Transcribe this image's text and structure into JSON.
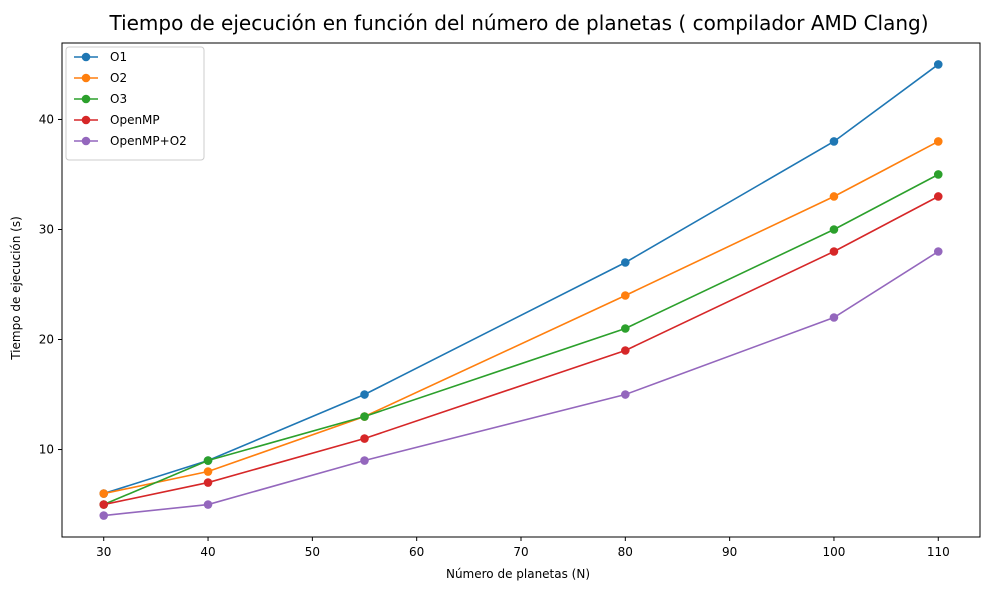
{
  "chart_data": {
    "type": "line",
    "title": "Tiempo de ejecución en función del número de planetas ( compilador AMD Clang)",
    "xlabel": "Número de planetas (N)",
    "ylabel": "Tiempo de ejecución (s)",
    "x": [
      30,
      40,
      55,
      80,
      100,
      110
    ],
    "xlim": [
      26.0,
      114.0
    ],
    "ylim": [
      2.05,
      46.95
    ],
    "xticks": [
      30,
      40,
      50,
      60,
      70,
      80,
      90,
      100,
      110
    ],
    "yticks": [
      10,
      20,
      30,
      40
    ],
    "grid": false,
    "legend_position": "top-left",
    "markers": true,
    "series": [
      {
        "name": "O1",
        "color": "#1f77b4",
        "values": [
          6,
          9,
          15,
          27,
          38,
          45
        ]
      },
      {
        "name": "O2",
        "color": "#ff7f0e",
        "values": [
          6,
          8,
          13,
          24,
          33,
          38
        ]
      },
      {
        "name": "O3",
        "color": "#2ca02c",
        "values": [
          5,
          9,
          13,
          21,
          30,
          35
        ]
      },
      {
        "name": "OpenMP",
        "color": "#d62728",
        "values": [
          5,
          7,
          11,
          19,
          28,
          33
        ]
      },
      {
        "name": "OpenMP+O2",
        "color": "#9467bd",
        "values": [
          4,
          5,
          9,
          15,
          22,
          28
        ]
      }
    ]
  }
}
